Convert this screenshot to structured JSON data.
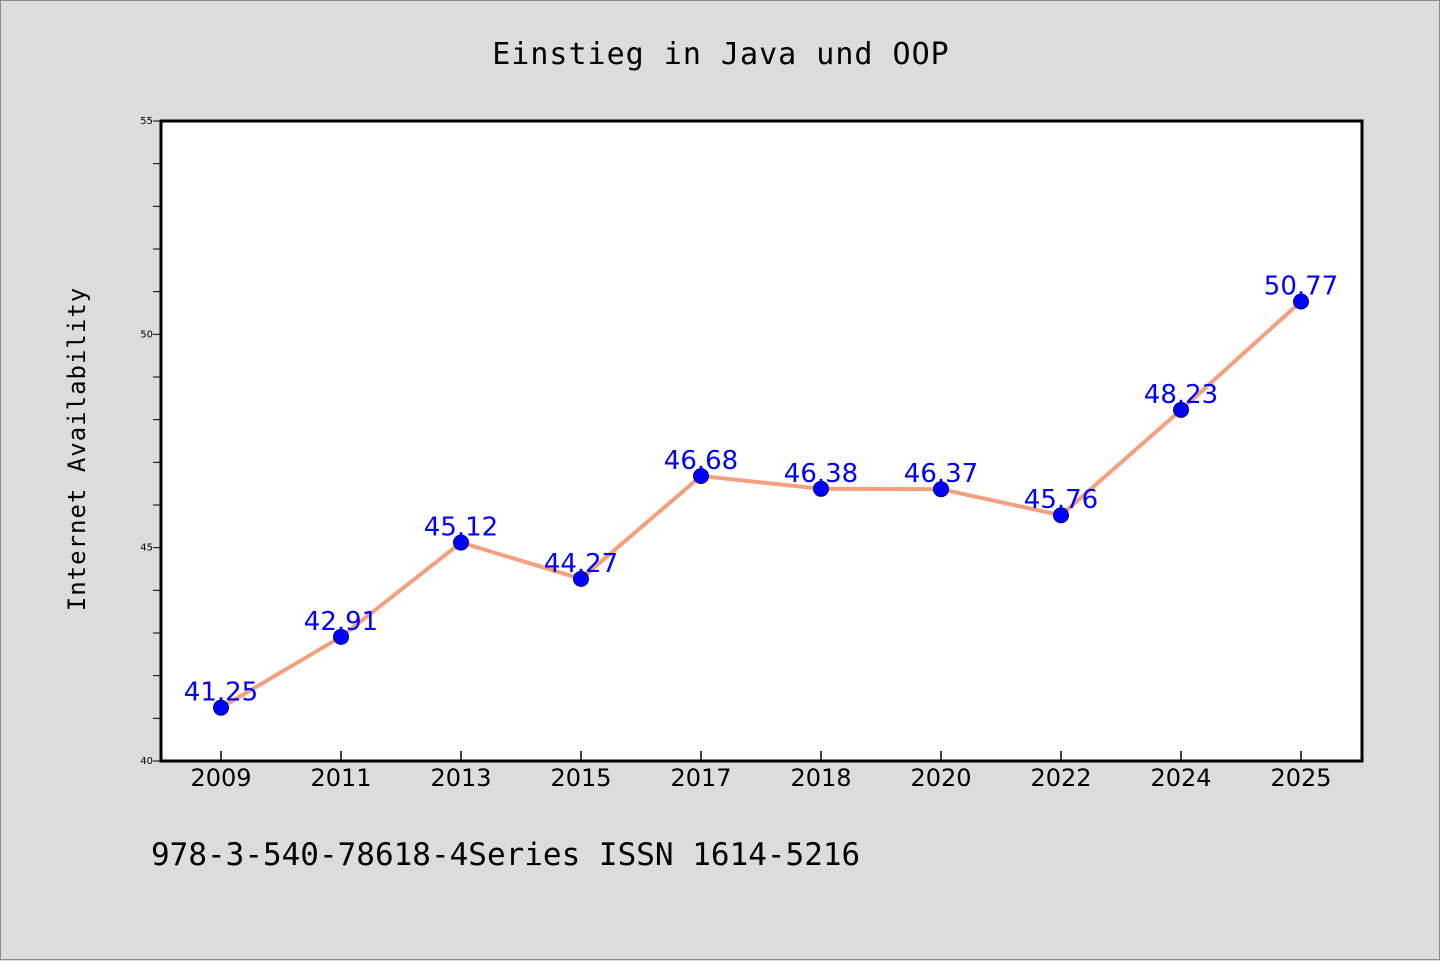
{
  "chart_data": {
    "type": "line",
    "title": "Einstieg in Java und OOP",
    "xlabel": "",
    "ylabel": "Internet Availability",
    "categories": [
      "2009",
      "2011",
      "2013",
      "2015",
      "2017",
      "2018",
      "2020",
      "2022",
      "2024",
      "2025"
    ],
    "series": [
      {
        "values": [
          41.25,
          42.91,
          45.12,
          44.27,
          46.68,
          46.38,
          46.37,
          45.76,
          48.23,
          50.77
        ],
        "data_labels": [
          "41.25",
          "42.91",
          "45.12",
          "44.27",
          "46.68",
          "46.38",
          "46.37",
          "45.76",
          "48.23",
          "50.77"
        ]
      }
    ],
    "ylim": [
      40,
      55
    ],
    "y_ticks": [
      "40",
      "45",
      "50",
      "55"
    ],
    "grid": false,
    "legend": "none",
    "colors": {
      "line": "#f4a07e",
      "marker": "#0000ff",
      "data_label": "#0000ff",
      "plot_background": "#ffffff",
      "figure_background": "#dcdcdc"
    }
  },
  "footer_text": "978-3-540-78618-4Series ISSN 1614-5216"
}
